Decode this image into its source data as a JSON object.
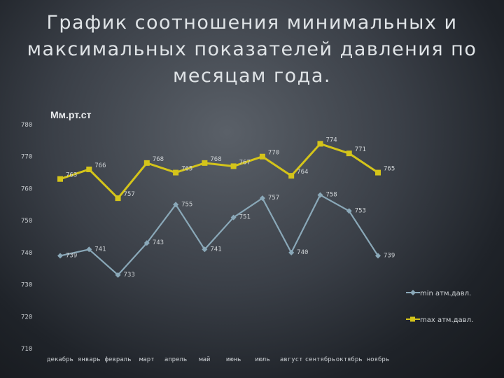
{
  "title": "График соотношения минимальных и\nмаксимальных показателей давления по\nмесяцам года.",
  "chart_data": {
    "type": "line",
    "ylabel": "Мм.рт.ст",
    "xlabel": "",
    "categories": [
      "декабрь",
      "январь",
      "февраль",
      "март",
      "апрель",
      "май",
      "июнь",
      "июль",
      "август",
      "сентябрь",
      "октябрь",
      "ноябрь"
    ],
    "ylim": [
      710,
      780
    ],
    "yticks": [
      710,
      720,
      730,
      740,
      750,
      760,
      770,
      780
    ],
    "grid": false,
    "legend": "right",
    "series": [
      {
        "name": "min атм.давл.",
        "color": "#8aa8b8",
        "marker": "diamond",
        "values": [
          739,
          741,
          733,
          743,
          755,
          741,
          751,
          757,
          740,
          758,
          753,
          739
        ]
      },
      {
        "name": "max атм.давл.",
        "color": "#d4c41a",
        "marker": "square",
        "values": [
          763,
          766,
          757,
          768,
          765,
          768,
          767,
          770,
          764,
          774,
          771,
          765
        ]
      }
    ]
  }
}
